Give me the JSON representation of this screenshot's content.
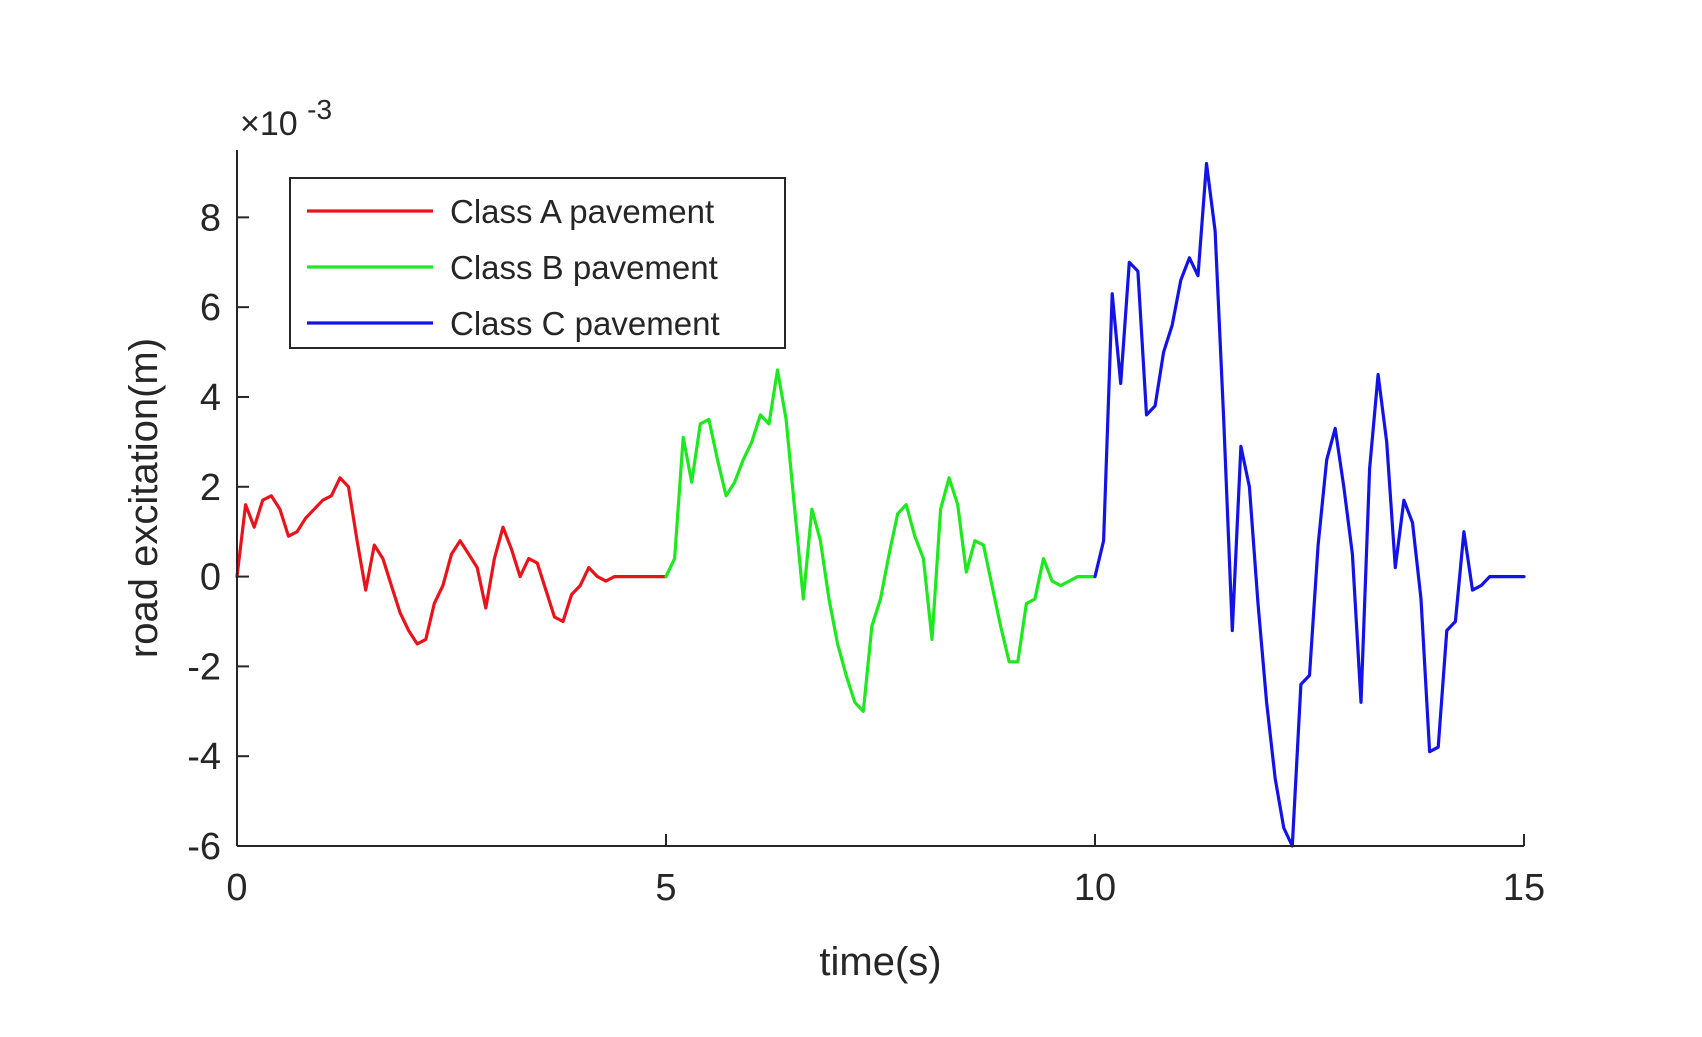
{
  "chart_data": {
    "type": "line",
    "title": "",
    "xlabel": "time(s)",
    "ylabel": "road excitation(m)",
    "y_scale_label": {
      "base": "×10",
      "exponent": "-3"
    },
    "xlim": [
      0,
      15
    ],
    "ylim": [
      -6,
      9.5
    ],
    "x_ticks": [
      0,
      5,
      10,
      15
    ],
    "x_tick_labels": [
      "0",
      "5",
      "10",
      "15"
    ],
    "y_ticks": [
      -6,
      -4,
      -2,
      0,
      2,
      4,
      6,
      8
    ],
    "y_tick_labels": [
      "-6",
      "-4",
      "-2",
      "0",
      "2",
      "4",
      "6",
      "8"
    ],
    "grid": false,
    "legend_position": "top-left",
    "series": [
      {
        "name": "Class A pavement",
        "color": "#e8141c",
        "x": [
          0,
          0.1,
          0.2,
          0.3,
          0.4,
          0.5,
          0.6,
          0.7,
          0.8,
          0.9,
          1.0,
          1.1,
          1.2,
          1.3,
          1.4,
          1.5,
          1.6,
          1.7,
          1.8,
          1.9,
          2.0,
          2.1,
          2.2,
          2.3,
          2.4,
          2.5,
          2.6,
          2.7,
          2.8,
          2.9,
          3.0,
          3.1,
          3.2,
          3.3,
          3.4,
          3.5,
          3.6,
          3.7,
          3.8,
          3.9,
          4.0,
          4.1,
          4.2,
          4.3,
          4.4,
          4.5,
          4.6,
          4.7,
          4.8,
          4.9,
          5.0
        ],
        "y": [
          0.0,
          1.6,
          1.1,
          1.7,
          1.8,
          1.5,
          0.9,
          1.0,
          1.3,
          1.5,
          1.7,
          1.8,
          2.2,
          2.0,
          0.8,
          -0.3,
          0.7,
          0.4,
          -0.2,
          -0.8,
          -1.2,
          -1.5,
          -1.4,
          -0.6,
          -0.2,
          0.5,
          0.8,
          0.5,
          0.2,
          -0.7,
          0.4,
          1.1,
          0.6,
          0.0,
          0.4,
          0.3,
          -0.3,
          -0.9,
          -1.0,
          -0.4,
          -0.2,
          0.2,
          0.0,
          -0.1,
          0.0,
          0.0,
          0.0,
          0.0,
          0.0,
          0.0,
          0.0
        ]
      },
      {
        "name": "Class B pavement",
        "color": "#1ee81e",
        "x": [
          5.0,
          5.1,
          5.2,
          5.3,
          5.4,
          5.5,
          5.6,
          5.7,
          5.8,
          5.9,
          6.0,
          6.1,
          6.2,
          6.3,
          6.4,
          6.5,
          6.6,
          6.7,
          6.8,
          6.9,
          7.0,
          7.1,
          7.2,
          7.3,
          7.4,
          7.5,
          7.6,
          7.7,
          7.8,
          7.9,
          8.0,
          8.1,
          8.2,
          8.3,
          8.4,
          8.5,
          8.6,
          8.7,
          8.8,
          8.9,
          9.0,
          9.1,
          9.2,
          9.3,
          9.4,
          9.5,
          9.6,
          9.7,
          9.8,
          9.9,
          10.0
        ],
        "y": [
          0.0,
          0.4,
          3.1,
          2.1,
          3.4,
          3.5,
          2.6,
          1.8,
          2.1,
          2.6,
          3.0,
          3.6,
          3.4,
          4.6,
          3.5,
          1.5,
          -0.5,
          1.5,
          0.8,
          -0.5,
          -1.5,
          -2.2,
          -2.8,
          -3.0,
          -1.1,
          -0.5,
          0.5,
          1.4,
          1.6,
          0.9,
          0.4,
          -1.4,
          1.5,
          2.2,
          1.6,
          0.1,
          0.8,
          0.7,
          -0.2,
          -1.1,
          -1.9,
          -1.9,
          -0.6,
          -0.5,
          0.4,
          -0.1,
          -0.2,
          -0.1,
          0.0,
          0.0,
          0.0
        ]
      },
      {
        "name": "Class C pavement",
        "color": "#1313e8",
        "x": [
          10.0,
          10.1,
          10.2,
          10.3,
          10.4,
          10.5,
          10.6,
          10.7,
          10.8,
          10.9,
          11.0,
          11.1,
          11.2,
          11.3,
          11.4,
          11.5,
          11.6,
          11.7,
          11.8,
          11.9,
          12.0,
          12.1,
          12.2,
          12.3,
          12.4,
          12.5,
          12.6,
          12.7,
          12.8,
          12.9,
          13.0,
          13.1,
          13.2,
          13.3,
          13.4,
          13.5,
          13.6,
          13.7,
          13.8,
          13.9,
          14.0,
          14.1,
          14.2,
          14.3,
          14.4,
          14.5,
          14.6,
          14.7,
          14.8,
          14.9,
          15.0
        ],
        "y": [
          0.0,
          0.8,
          6.3,
          4.3,
          7.0,
          6.8,
          3.6,
          3.8,
          5.0,
          5.6,
          6.6,
          7.1,
          6.7,
          9.2,
          7.7,
          3.5,
          -1.2,
          2.9,
          2.0,
          -0.6,
          -2.8,
          -4.5,
          -5.6,
          -6.0,
          -2.4,
          -2.2,
          0.7,
          2.6,
          3.3,
          2.0,
          0.5,
          -2.8,
          2.4,
          4.5,
          3.0,
          0.2,
          1.7,
          1.2,
          -0.5,
          -3.9,
          -3.8,
          -1.2,
          -1.0,
          1.0,
          -0.3,
          -0.2,
          0.0,
          0.0,
          0.0,
          0.0,
          0.0
        ]
      }
    ]
  }
}
